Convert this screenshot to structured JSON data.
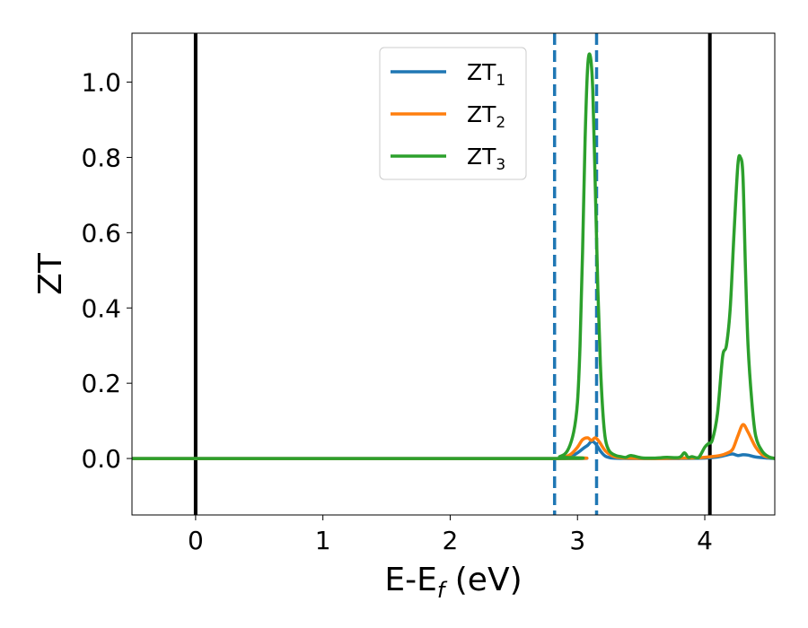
{
  "chart_data": {
    "type": "line",
    "xlabel": "E-E",
    "xlabel_sub": "f",
    "xlabel_unit": " (eV)",
    "ylabel": "ZT",
    "xlim": [
      -0.5,
      4.55
    ],
    "ylim": [
      -0.15,
      1.13
    ],
    "xticks": [
      0,
      1,
      2,
      3,
      4
    ],
    "xtick_labels": [
      "0",
      "1",
      "2",
      "3",
      "4"
    ],
    "yticks": [
      0.0,
      0.2,
      0.4,
      0.6,
      0.8,
      1.0
    ],
    "ytick_labels": [
      "0.0",
      "0.2",
      "0.4",
      "0.6",
      "0.8",
      "1.0"
    ],
    "grid": false,
    "legend_position": "top-center",
    "vlines": [
      {
        "x": 0.0,
        "color": "#000000",
        "style": "solid"
      },
      {
        "x": 4.04,
        "color": "#000000",
        "style": "solid"
      },
      {
        "x": 2.82,
        "color": "#1f77b4",
        "style": "dashed"
      },
      {
        "x": 3.15,
        "color": "#1f77b4",
        "style": "dashed"
      }
    ],
    "series": [
      {
        "name": "ZT",
        "name_sub": "1",
        "color": "#1f77b4",
        "x": [
          -0.5,
          2.8,
          2.9,
          2.95,
          3.0,
          3.05,
          3.08,
          3.11,
          3.14,
          3.18,
          3.22,
          3.28,
          3.4,
          3.6,
          3.8,
          4.0,
          4.1,
          4.18,
          4.22,
          4.26,
          4.3,
          4.34,
          4.4,
          4.5,
          4.55
        ],
        "y": [
          0,
          0,
          0.002,
          0.006,
          0.015,
          0.028,
          0.035,
          0.045,
          0.04,
          0.02,
          0.006,
          0.001,
          0.0,
          0.0,
          0.0,
          0.001,
          0.004,
          0.01,
          0.012,
          0.008,
          0.01,
          0.009,
          0.004,
          0.001,
          0.0
        ]
      },
      {
        "name": "ZT",
        "name_sub": "2",
        "color": "#ff7f0e",
        "x": [
          -0.5,
          2.8,
          2.9,
          2.95,
          3.0,
          3.04,
          3.08,
          3.11,
          3.14,
          3.17,
          3.22,
          3.28,
          3.34,
          3.4,
          3.6,
          3.8,
          3.95,
          4.05,
          4.12,
          4.18,
          4.22,
          4.26,
          4.3,
          4.34,
          4.4,
          4.46,
          4.55
        ],
        "y": [
          0,
          0,
          0.004,
          0.012,
          0.03,
          0.05,
          0.055,
          0.048,
          0.055,
          0.045,
          0.02,
          0.006,
          0.002,
          0.001,
          0.0,
          0.001,
          0.002,
          0.005,
          0.008,
          0.015,
          0.025,
          0.06,
          0.09,
          0.07,
          0.03,
          0.008,
          0.0
        ]
      },
      {
        "name": "ZT",
        "name_sub": "3",
        "color": "#2ca02c",
        "x": [
          -0.5,
          2.78,
          2.86,
          2.92,
          2.97,
          3.0,
          3.02,
          3.04,
          3.06,
          3.08,
          3.1,
          3.12,
          3.14,
          3.16,
          3.18,
          3.2,
          3.22,
          3.25,
          3.3,
          3.34,
          3.38,
          3.42,
          3.5,
          3.6,
          3.7,
          3.8,
          3.84,
          3.87,
          3.9,
          3.95,
          4.0,
          4.03,
          4.06,
          4.1,
          4.14,
          4.17,
          4.2,
          4.23,
          4.26,
          4.28,
          4.3,
          4.32,
          4.34,
          4.37,
          4.4,
          4.45,
          4.5,
          4.55
        ],
        "y": [
          0,
          0,
          0.005,
          0.02,
          0.07,
          0.15,
          0.3,
          0.55,
          0.85,
          1.04,
          1.07,
          0.98,
          0.72,
          0.45,
          0.25,
          0.12,
          0.05,
          0.02,
          0.008,
          0.005,
          0.003,
          0.008,
          0.002,
          0.001,
          0.003,
          0.003,
          0.015,
          0.003,
          0.005,
          0.002,
          0.03,
          0.04,
          0.05,
          0.12,
          0.27,
          0.3,
          0.4,
          0.6,
          0.78,
          0.8,
          0.75,
          0.5,
          0.3,
          0.15,
          0.06,
          0.02,
          0.005,
          0.0
        ]
      }
    ]
  }
}
